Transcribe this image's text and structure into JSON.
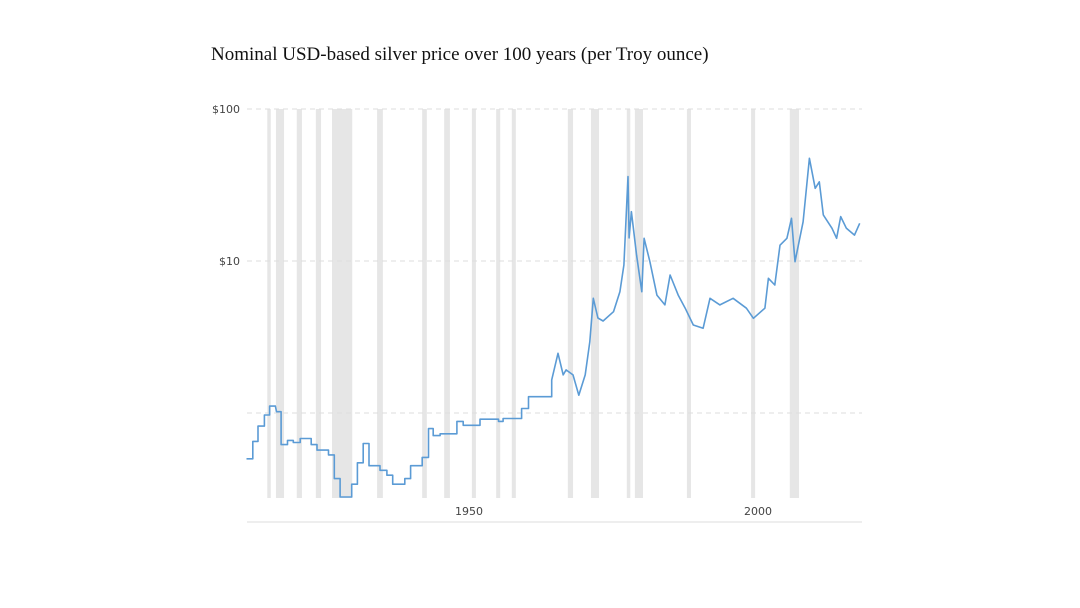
{
  "chart_data": {
    "type": "line",
    "title": "Nominal USD-based silver price over 100 years (per Troy ounce)",
    "xlabel": "",
    "ylabel": "",
    "y_scale": "log",
    "xlim": [
      1911.5,
      2017.7
    ],
    "ylim": [
      0.276,
      100
    ],
    "grid": "horizontal dashed",
    "x_ticks": [
      {
        "value": 1950,
        "label": "1950"
      },
      {
        "value": 2000,
        "label": "2000"
      }
    ],
    "y_ticks": [
      {
        "value": 100,
        "label": "$100"
      },
      {
        "value": 10,
        "label": "$10"
      },
      {
        "value": 1,
        "label": ""
      }
    ],
    "colors": {
      "line": "#5b9bd5",
      "recession_band": "#e6e6e6",
      "grid": "#dddddd"
    },
    "shaded_bands": [
      [
        1915.1,
        1915.7
      ],
      [
        1916.6,
        1918.0
      ],
      [
        1920.2,
        1921.1
      ],
      [
        1923.5,
        1924.4
      ],
      [
        1926.3,
        1929.8
      ],
      [
        1934.1,
        1935.1
      ],
      [
        1941.9,
        1942.7
      ],
      [
        1945.7,
        1946.7
      ],
      [
        1950.5,
        1951.2
      ],
      [
        1954.7,
        1955.4
      ],
      [
        1957.4,
        1958.1
      ],
      [
        1967.1,
        1968.0
      ],
      [
        1971.1,
        1972.5
      ],
      [
        1977.3,
        1977.9
      ],
      [
        1978.7,
        1980.1
      ],
      [
        1987.7,
        1988.4
      ],
      [
        1998.8,
        1999.5
      ],
      [
        2005.5,
        2007.1
      ]
    ],
    "series": [
      {
        "x": [
          1911.5,
          1912.6,
          1912.6,
          1913.5,
          1913.5,
          1914.6,
          1914.6,
          1915.5,
          1915.5,
          1916.5,
          1916.7,
          1917.5,
          1917.5,
          1918.6,
          1918.6,
          1919.6,
          1919.6,
          1920.8,
          1920.8,
          1922.7,
          1922.7,
          1923.7,
          1923.7,
          1925.7,
          1925.7,
          1926.7,
          1926.7,
          1927.7,
          1927.7,
          1928.8,
          1929.7,
          1929.7,
          1930.7,
          1930.7,
          1931.7,
          1931.7,
          1932.7,
          1932.7,
          1934.6,
          1934.6,
          1935.8,
          1935.8,
          1936.8,
          1936.8,
          1938.9,
          1938.9,
          1939.9,
          1939.9,
          1941.9,
          1941.9,
          1943.0,
          1943.0,
          1943.8,
          1943.8,
          1945.0,
          1945.0,
          1947.9,
          1947.9,
          1949.0,
          1949.0,
          1951.9,
          1951.9,
          1955.1,
          1955.1,
          1955.9,
          1955.9,
          1959.1,
          1959.1,
          1960.3,
          1960.3,
          1964.3,
          1964.3,
          1965.4,
          1966.3,
          1966.8,
          1968.0,
          1969.0,
          1970.1,
          1970.9,
          1971.5,
          1972.3,
          1973.2,
          1975.0,
          1976.1,
          1976.8,
          1977.5,
          1977.7,
          1978.1,
          1979.0,
          1979.9,
          1980.3,
          1981.3,
          1982.5,
          1983.9,
          1984.8,
          1986.2,
          1987.4,
          1988.8,
          1990.5,
          1991.7,
          1993.4,
          1995.7,
          1998.0,
          1999.2,
          2001.2,
          2001.8,
          2002.9,
          2003.8,
          2005.0,
          2005.8,
          2006.4,
          2007.8,
          2008.9,
          2009.9,
          2010.6,
          2011.3,
          2012.8,
          2013.6,
          2014.3,
          2015.3,
          2016.7,
          2017.6
        ],
        "y": [
          0.5,
          0.5,
          0.65,
          0.65,
          0.82,
          0.82,
          0.97,
          0.97,
          1.11,
          1.11,
          1.02,
          1.02,
          0.62,
          0.62,
          0.66,
          0.66,
          0.64,
          0.64,
          0.68,
          0.68,
          0.62,
          0.62,
          0.57,
          0.57,
          0.53,
          0.53,
          0.37,
          0.37,
          0.28,
          0.28,
          0.28,
          0.34,
          0.34,
          0.47,
          0.47,
          0.63,
          0.63,
          0.45,
          0.45,
          0.42,
          0.42,
          0.39,
          0.39,
          0.34,
          0.34,
          0.37,
          0.37,
          0.45,
          0.45,
          0.51,
          0.51,
          0.79,
          0.79,
          0.71,
          0.71,
          0.73,
          0.73,
          0.88,
          0.88,
          0.83,
          0.83,
          0.91,
          0.91,
          0.88,
          0.88,
          0.92,
          0.92,
          1.07,
          1.07,
          1.28,
          1.28,
          1.65,
          2.47,
          1.78,
          1.92,
          1.78,
          1.31,
          1.78,
          2.94,
          5.68,
          4.22,
          4.03,
          4.64,
          6.28,
          9.41,
          35.9,
          14.2,
          21.1,
          10.9,
          6.28,
          14.1,
          9.9,
          5.97,
          5.14,
          8.09,
          5.97,
          4.89,
          3.79,
          3.61,
          5.68,
          5.14,
          5.68,
          4.89,
          4.2,
          4.89,
          7.69,
          6.95,
          12.7,
          14.1,
          19.1,
          9.9,
          18.1,
          47.4,
          30.1,
          33.2,
          20.1,
          16.4,
          14.1,
          19.6,
          16.4,
          14.8,
          17.7
        ]
      }
    ]
  }
}
